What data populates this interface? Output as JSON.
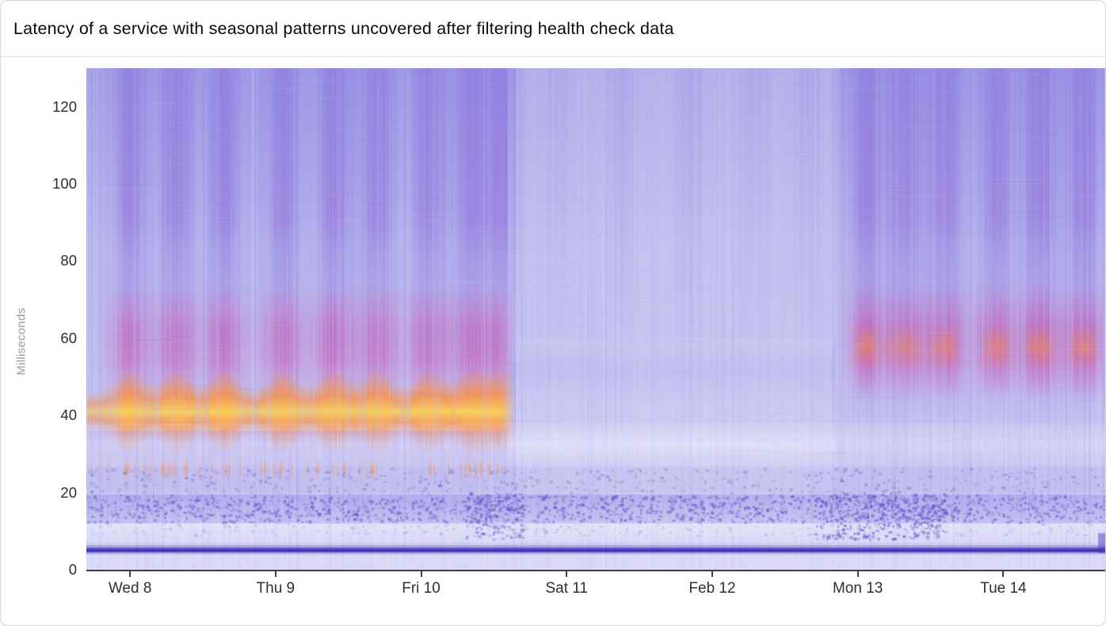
{
  "header": {
    "title": "Latency of a service with seasonal patterns uncovered after filtering health check data"
  },
  "chart_data": {
    "type": "heatmap",
    "title": "Latency of a service with seasonal patterns uncovered after filtering health check data",
    "xlabel": "",
    "ylabel": "Milliseconds",
    "units": "ms",
    "ylim": [
      0,
      130
    ],
    "y_ticks": [
      0,
      20,
      40,
      60,
      80,
      100,
      120
    ],
    "x_tick_labels": [
      "Wed 8",
      "Thu 9",
      "Fri 10",
      "Sat 11",
      "Feb 12",
      "Mon 13",
      "Tue 14"
    ],
    "days_shown": 7,
    "grid": false,
    "legend": "none",
    "palette": {
      "base_top": "#a7a1e7",
      "base_mid": "#c2bfef",
      "base_low": "#d8d6f6",
      "stripe": "#7d76e0",
      "plume": "#8b85e6",
      "deep_purple": "#8a5fd6",
      "magenta": "#e8509f",
      "orange": "#ff8d35",
      "yellow": "#ffd04f",
      "gap_white": "#f0effc",
      "speckle": "#5149c4",
      "dark_line": "#4338b8"
    },
    "features": {
      "baseline_band": {
        "ms": 5,
        "description": "constant dark latency line across all seven days"
      },
      "white_band_low_ms": [
        7,
        12
      ],
      "speckle_band_ms": [
        12,
        19
      ],
      "white_band_mid_ms": [
        28,
        38
      ],
      "hot_band": {
        "ms_range": [
          34,
          47
        ],
        "peak_ms": 42,
        "active_days": [
          0,
          2.95
        ],
        "description": "sustained orange/yellow latency band Wed 8 - Fri 10"
      },
      "burst_band": {
        "ms_range": [
          44,
          74
        ],
        "description": "purple-magenta burst plumes above the hot band during weekdays"
      },
      "return_spots": {
        "ms_range": [
          50,
          68
        ],
        "active_days": [
          5.12,
          7
        ],
        "description": "magenta hot spots return Mon 13 - Tue 14"
      },
      "quiet_period_days": [
        2.95,
        5.12
      ],
      "burst_centers_days": [
        0.3,
        0.62,
        0.95,
        1.35,
        1.7,
        2.0,
        2.35,
        2.65,
        2.88,
        5.35,
        5.62,
        5.9,
        6.25,
        6.55,
        6.85
      ],
      "weekend_plume_centers_days": [
        3.25,
        3.7,
        4.15,
        4.6,
        4.95
      ]
    }
  }
}
